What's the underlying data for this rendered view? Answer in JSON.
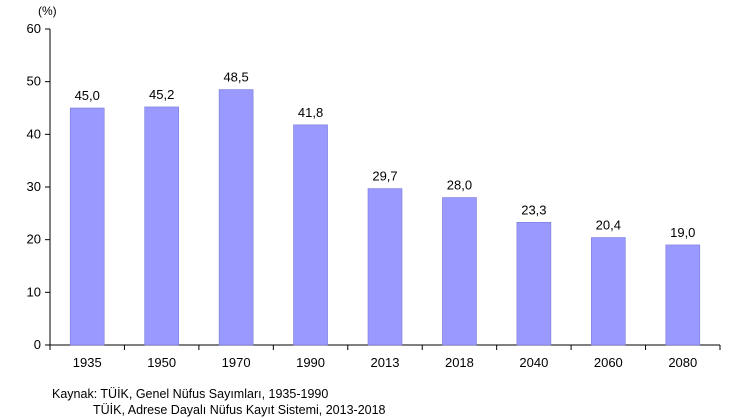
{
  "chart_data": {
    "type": "bar",
    "y_unit": "(%)",
    "categories": [
      "1935",
      "1950",
      "1970",
      "1990",
      "2013",
      "2018",
      "2040",
      "2060",
      "2080"
    ],
    "values": [
      45.0,
      45.2,
      48.5,
      41.8,
      29.7,
      28.0,
      23.3,
      20.4,
      19.0
    ],
    "value_labels": [
      "45,0",
      "45,2",
      "48,5",
      "41,8",
      "29,7",
      "28,0",
      "23,3",
      "20,4",
      "19,0"
    ],
    "ylim": [
      0,
      60
    ],
    "yticks": [
      0,
      10,
      20,
      30,
      40,
      50,
      60
    ],
    "grid": false,
    "bar_color": "#9999ff",
    "bar_edge_color": "#7b7bd9"
  },
  "source": {
    "line1": "Kaynak: TÜİK, Genel Nüfus Sayımları, 1935-1990",
    "line2": "TÜİK, Adrese Dayalı Nüfus Kayıt Sistemi, 2013-2018"
  }
}
